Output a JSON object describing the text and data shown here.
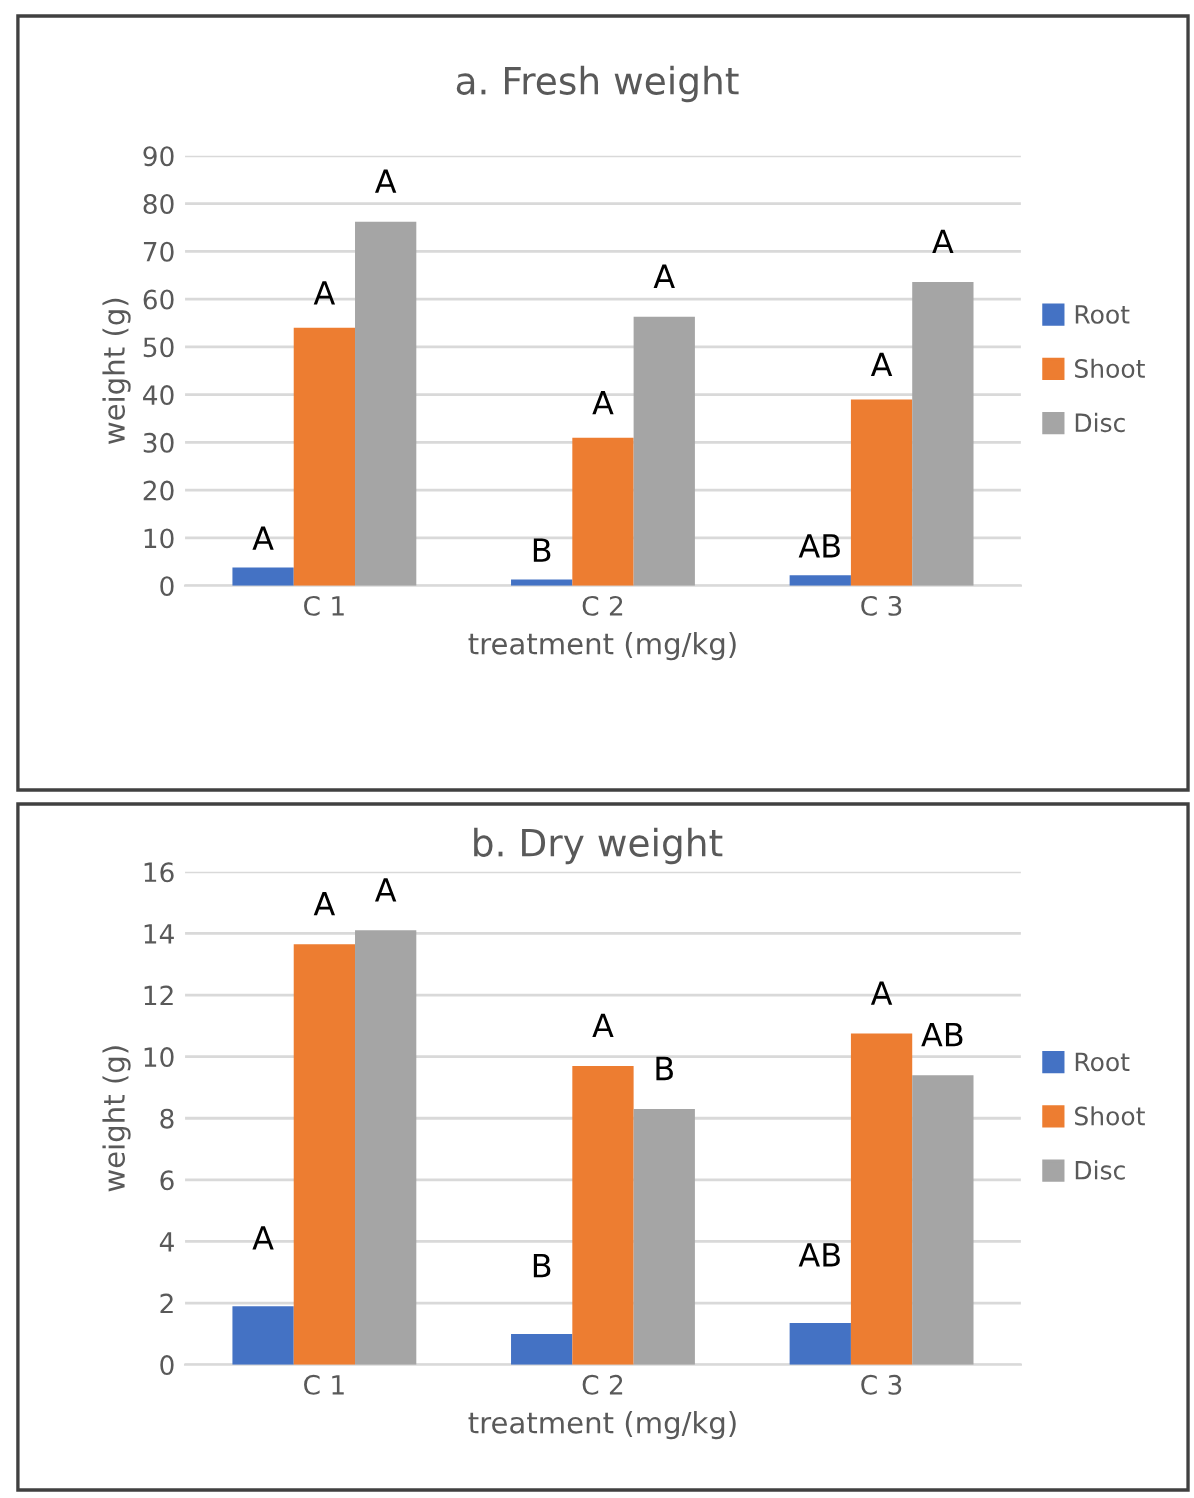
{
  "chart_data": [
    {
      "type": "bar",
      "title": "a. Fresh weight",
      "xlabel": "treatment (mg/kg)",
      "ylabel": "weight (g)",
      "categories": [
        "C 1",
        "C 2",
        "C 3"
      ],
      "series": [
        {
          "name": "Root",
          "color": "#4472c4",
          "values": [
            3.8,
            1.3,
            2.2
          ]
        },
        {
          "name": "Shoot",
          "color": "#ed7d31",
          "values": [
            54,
            31,
            39
          ]
        },
        {
          "name": "Disc",
          "color": "#a5a5a5",
          "values": [
            76.2,
            56.3,
            63.6
          ]
        }
      ],
      "ylim": [
        0,
        90
      ],
      "yticks": [
        0,
        10,
        20,
        30,
        40,
        50,
        60,
        70,
        80,
        90
      ],
      "grid": "y",
      "legend": "right",
      "annotations": [
        "A",
        "B",
        "AB",
        "A",
        "A",
        "A",
        "A",
        "A",
        "A"
      ]
    },
    {
      "type": "bar",
      "title": "b. Dry weight",
      "xlabel": "treatment (mg/kg)",
      "ylabel": "weight (g)",
      "categories": [
        "C 1",
        "C 2",
        "C 3"
      ],
      "series": [
        {
          "name": "Root",
          "color": "#4472c4",
          "values": [
            1.9,
            1.0,
            1.35
          ]
        },
        {
          "name": "Shoot",
          "color": "#ed7d31",
          "values": [
            13.65,
            9.7,
            10.75
          ]
        },
        {
          "name": "Disc",
          "color": "#a5a5a5",
          "values": [
            14.1,
            8.3,
            9.4
          ]
        }
      ],
      "ylim": [
        0,
        16
      ],
      "yticks": [
        0,
        2,
        4,
        6,
        8,
        10,
        12,
        14,
        16
      ],
      "grid": "y",
      "legend": "right",
      "annotations": [
        "A",
        "B",
        "AB",
        "A",
        "A",
        "A",
        "A",
        "B",
        "AB"
      ]
    }
  ]
}
